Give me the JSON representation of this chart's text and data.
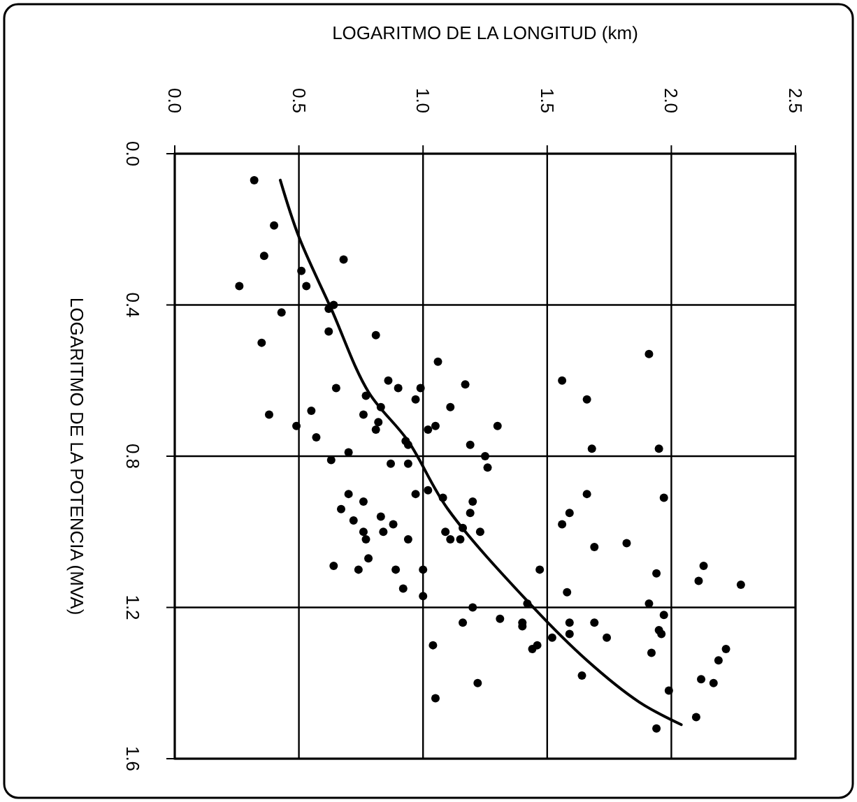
{
  "chart_data": {
    "type": "scatter",
    "xlabel": "LOGARITMO DE LA LONGITUD (km)",
    "ylabel": "LOGARITMO DE LA POTENCIA (MVA)",
    "xlim": [
      0,
      2.5
    ],
    "xticks": [
      {
        "value": 0,
        "label": "0.0"
      },
      {
        "value": 0.5,
        "label": "0.5"
      },
      {
        "value": 1,
        "label": "1.0"
      },
      {
        "value": 1.5,
        "label": "1.5"
      },
      {
        "value": 2,
        "label": "2.0"
      },
      {
        "value": 2.5,
        "label": "2.5"
      }
    ],
    "ylim": [
      1.6,
      0
    ],
    "yticks": [
      {
        "value": 0,
        "label": "0.0"
      },
      {
        "value": 0.4,
        "label": "0.4"
      },
      {
        "value": 0.8,
        "label": "0.8"
      },
      {
        "value": 1.2,
        "label": "1.2"
      },
      {
        "value": 1.6,
        "label": "1.6"
      }
    ],
    "grid": true,
    "marker": "circle",
    "series": [
      {
        "color": "#000000",
        "x": [
          0.32,
          0.4,
          0.36,
          0.68,
          0.26,
          0.51,
          0.53,
          0.43,
          0.62,
          0.64,
          0.35,
          0.62,
          0.81,
          1.06,
          0.65,
          0.86,
          0.9,
          0.99,
          0.97,
          0.38,
          0.55,
          0.77,
          0.76,
          0.83,
          0.82,
          0.81,
          1.11,
          0.49,
          0.57,
          1.02,
          1.05,
          0.93,
          0.94,
          0.7,
          0.63,
          0.87,
          0.94,
          0.7,
          0.76,
          0.67,
          0.72,
          0.83,
          0.76,
          0.77,
          0.84,
          0.88,
          0.94,
          0.97,
          1.02,
          1.08,
          1.09,
          1.11,
          0.64,
          0.74,
          0.78,
          0.89,
          1.0,
          0.92,
          1.0,
          1.04,
          1.05,
          1.91,
          1.17,
          1.56,
          1.66,
          1.3,
          1.19,
          1.25,
          1.68,
          1.95,
          1.26,
          1.66,
          1.97,
          1.2,
          1.19,
          1.59,
          1.56,
          1.16,
          1.23,
          1.15,
          1.69,
          1.82,
          1.47,
          1.94,
          2.13,
          2.11,
          2.28,
          1.58,
          1.91,
          1.2,
          1.16,
          1.31,
          1.4,
          1.4,
          1.42,
          1.97,
          1.59,
          1.69,
          1.95,
          1.96,
          1.52,
          1.59,
          1.74,
          1.46,
          1.44,
          1.92,
          2.22,
          2.19,
          1.22,
          1.64,
          2.12,
          2.17,
          1.99,
          2.1,
          1.94
        ],
        "values": [
          0.07,
          0.19,
          0.27,
          0.28,
          0.35,
          0.31,
          0.35,
          0.42,
          0.41,
          0.4,
          0.5,
          0.47,
          0.48,
          0.55,
          0.62,
          0.6,
          0.62,
          0.62,
          0.65,
          0.69,
          0.68,
          0.64,
          0.69,
          0.67,
          0.71,
          0.73,
          0.67,
          0.72,
          0.75,
          0.73,
          0.72,
          0.76,
          0.77,
          0.79,
          0.81,
          0.82,
          0.82,
          0.9,
          0.92,
          0.94,
          0.97,
          0.96,
          1.0,
          1.02,
          1.0,
          0.98,
          1.02,
          0.9,
          0.89,
          0.91,
          1.0,
          1.02,
          1.09,
          1.1,
          1.07,
          1.1,
          1.1,
          1.15,
          1.17,
          1.3,
          1.44,
          0.53,
          0.61,
          0.6,
          0.65,
          0.72,
          0.77,
          0.8,
          0.78,
          0.78,
          0.83,
          0.9,
          0.91,
          0.92,
          0.95,
          0.95,
          0.98,
          0.99,
          1.0,
          1.02,
          1.04,
          1.03,
          1.1,
          1.11,
          1.09,
          1.13,
          1.14,
          1.16,
          1.19,
          1.2,
          1.24,
          1.23,
          1.24,
          1.25,
          1.19,
          1.22,
          1.24,
          1.24,
          1.26,
          1.27,
          1.28,
          1.27,
          1.28,
          1.3,
          1.31,
          1.32,
          1.31,
          1.34,
          1.4,
          1.38,
          1.39,
          1.4,
          1.42,
          1.49,
          1.52
        ]
      },
      {
        "type": "line",
        "color": "#000000",
        "marker": "none",
        "line_style": "solid",
        "x": [
          0.425,
          0.5,
          0.63,
          0.78,
          0.94,
          1.1,
          1.43,
          1.66,
          1.87,
          2.04
        ],
        "values": [
          0.07,
          0.22,
          0.41,
          0.63,
          0.76,
          0.94,
          1.19,
          1.34,
          1.45,
          1.51
        ]
      }
    ]
  }
}
